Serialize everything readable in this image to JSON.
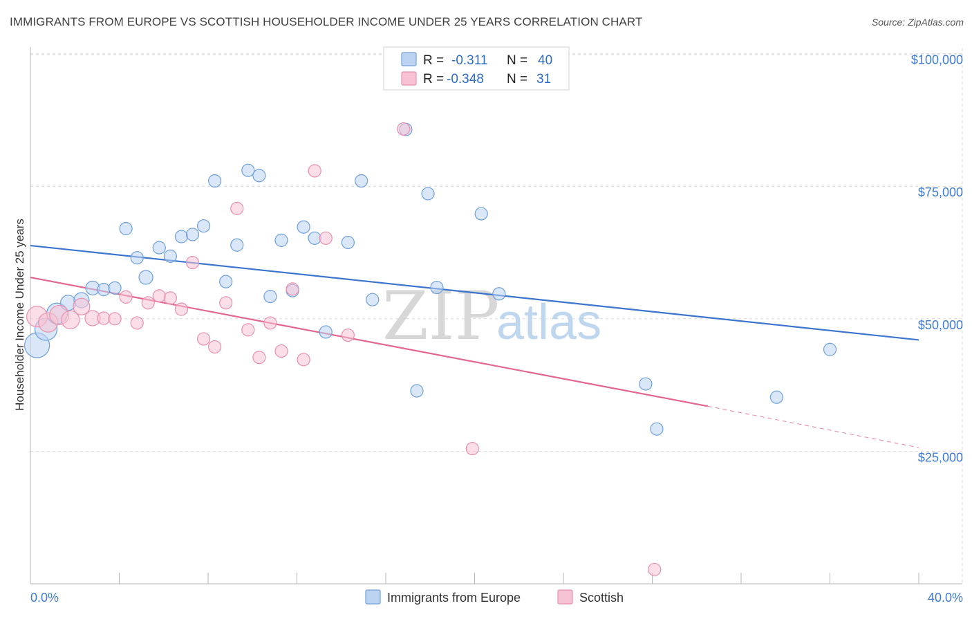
{
  "title": "IMMIGRANTS FROM EUROPE VS SCOTTISH HOUSEHOLDER INCOME UNDER 25 YEARS CORRELATION CHART",
  "source": "Source: ZipAtlas.com",
  "watermark": {
    "zip": "ZIP",
    "atlas": "atlas"
  },
  "colors": {
    "blue": "#3a74cf",
    "blue_fill": "#bcd4f2",
    "pink": "#e3668f",
    "pink_fill": "#f7c3d4",
    "axis_text": "#3f7bd0",
    "grid": "#d9d9d9"
  },
  "chart_data": {
    "type": "scatter",
    "xlabel": "",
    "ylabel": "Householder Income Under 25 years",
    "x_unit": "%",
    "xlim": [
      0,
      40
    ],
    "ylim": [
      0,
      105000
    ],
    "x_tick_labels": {
      "min": "0.0%",
      "max": "40.0%"
    },
    "y_ticks": [
      {
        "value": 25000,
        "label": "$25,000"
      },
      {
        "value": 50000,
        "label": "$50,000"
      },
      {
        "value": 75000,
        "label": "$75,000"
      },
      {
        "value": 100000,
        "label": "$100,000"
      }
    ],
    "legend": {
      "r_label": "R =",
      "n_label": "N =",
      "rows": [
        {
          "name": "Immigrants from Europe",
          "r": "-0.311",
          "n": "40"
        },
        {
          "name": "Scottish",
          "r": "-0.348",
          "n": "31"
        }
      ]
    },
    "series": [
      {
        "name": "Immigrants from Europe",
        "color": "blue",
        "trend": {
          "x0": 0,
          "y0": 63800,
          "x1": 40,
          "y1": 46000
        },
        "points": [
          {
            "x": 0.3,
            "y": 45000,
            "s": 18
          },
          {
            "x": 0.7,
            "y": 48000,
            "s": 16
          },
          {
            "x": 1.2,
            "y": 51000,
            "s": 15
          },
          {
            "x": 1.7,
            "y": 53000,
            "s": 11
          },
          {
            "x": 2.3,
            "y": 53500,
            "s": 11
          },
          {
            "x": 2.8,
            "y": 55800,
            "s": 10
          },
          {
            "x": 3.3,
            "y": 55500,
            "s": 9
          },
          {
            "x": 3.8,
            "y": 55800,
            "s": 9
          },
          {
            "x": 4.3,
            "y": 67000,
            "s": 9
          },
          {
            "x": 4.8,
            "y": 61500,
            "s": 9
          },
          {
            "x": 5.2,
            "y": 57800,
            "s": 10
          },
          {
            "x": 5.8,
            "y": 63400,
            "s": 9
          },
          {
            "x": 6.3,
            "y": 61800,
            "s": 9
          },
          {
            "x": 6.8,
            "y": 65500,
            "s": 9
          },
          {
            "x": 7.3,
            "y": 65900,
            "s": 9
          },
          {
            "x": 7.8,
            "y": 67500,
            "s": 9
          },
          {
            "x": 8.3,
            "y": 76000,
            "s": 9
          },
          {
            "x": 8.8,
            "y": 57000,
            "s": 9
          },
          {
            "x": 9.3,
            "y": 63900,
            "s": 9
          },
          {
            "x": 9.8,
            "y": 78000,
            "s": 9
          },
          {
            "x": 10.3,
            "y": 77000,
            "s": 9
          },
          {
            "x": 10.8,
            "y": 54200,
            "s": 9
          },
          {
            "x": 11.3,
            "y": 64800,
            "s": 9
          },
          {
            "x": 11.8,
            "y": 55300,
            "s": 9
          },
          {
            "x": 12.3,
            "y": 67300,
            "s": 9
          },
          {
            "x": 12.8,
            "y": 65200,
            "s": 9
          },
          {
            "x": 13.3,
            "y": 47500,
            "s": 9
          },
          {
            "x": 14.3,
            "y": 64400,
            "s": 9
          },
          {
            "x": 14.9,
            "y": 76000,
            "s": 9
          },
          {
            "x": 15.4,
            "y": 53600,
            "s": 9
          },
          {
            "x": 16.9,
            "y": 85700,
            "s": 9
          },
          {
            "x": 17.4,
            "y": 36400,
            "s": 9
          },
          {
            "x": 17.9,
            "y": 73600,
            "s": 9
          },
          {
            "x": 18.3,
            "y": 55900,
            "s": 9
          },
          {
            "x": 20.3,
            "y": 69800,
            "s": 9
          },
          {
            "x": 21.1,
            "y": 54700,
            "s": 9
          },
          {
            "x": 27.7,
            "y": 37700,
            "s": 9
          },
          {
            "x": 28.2,
            "y": 29200,
            "s": 9
          },
          {
            "x": 33.6,
            "y": 35200,
            "s": 9
          },
          {
            "x": 36.0,
            "y": 44200,
            "s": 9
          }
        ]
      },
      {
        "name": "Scottish",
        "color": "pink",
        "trend": {
          "x0": 0,
          "y0": 57800,
          "x1": 30.5,
          "y1": 33500,
          "dash_x1": 40,
          "dash_y1": 25700
        },
        "points": [
          {
            "x": 0.3,
            "y": 50400,
            "s": 15
          },
          {
            "x": 0.8,
            "y": 49300,
            "s": 14
          },
          {
            "x": 1.3,
            "y": 50700,
            "s": 14
          },
          {
            "x": 1.8,
            "y": 49800,
            "s": 13
          },
          {
            "x": 2.3,
            "y": 52300,
            "s": 12
          },
          {
            "x": 2.8,
            "y": 50100,
            "s": 11
          },
          {
            "x": 3.3,
            "y": 50100,
            "s": 9
          },
          {
            "x": 3.8,
            "y": 50000,
            "s": 9
          },
          {
            "x": 4.3,
            "y": 54100,
            "s": 9
          },
          {
            "x": 4.8,
            "y": 49200,
            "s": 9
          },
          {
            "x": 5.3,
            "y": 53000,
            "s": 9
          },
          {
            "x": 5.8,
            "y": 54300,
            "s": 9
          },
          {
            "x": 6.3,
            "y": 53900,
            "s": 9
          },
          {
            "x": 6.8,
            "y": 51800,
            "s": 9
          },
          {
            "x": 7.3,
            "y": 60600,
            "s": 9
          },
          {
            "x": 7.8,
            "y": 46200,
            "s": 9
          },
          {
            "x": 8.3,
            "y": 44700,
            "s": 9
          },
          {
            "x": 8.8,
            "y": 53000,
            "s": 9
          },
          {
            "x": 9.3,
            "y": 70800,
            "s": 9
          },
          {
            "x": 9.8,
            "y": 47900,
            "s": 9
          },
          {
            "x": 10.3,
            "y": 42700,
            "s": 9
          },
          {
            "x": 10.8,
            "y": 49200,
            "s": 9
          },
          {
            "x": 11.3,
            "y": 43900,
            "s": 9
          },
          {
            "x": 11.8,
            "y": 55600,
            "s": 9
          },
          {
            "x": 12.3,
            "y": 42300,
            "s": 9
          },
          {
            "x": 12.8,
            "y": 77900,
            "s": 9
          },
          {
            "x": 13.3,
            "y": 65200,
            "s": 9
          },
          {
            "x": 14.3,
            "y": 46900,
            "s": 9
          },
          {
            "x": 16.8,
            "y": 85800,
            "s": 9
          },
          {
            "x": 19.9,
            "y": 25500,
            "s": 9
          },
          {
            "x": 28.1,
            "y": 2700,
            "s": 9
          }
        ]
      }
    ]
  }
}
